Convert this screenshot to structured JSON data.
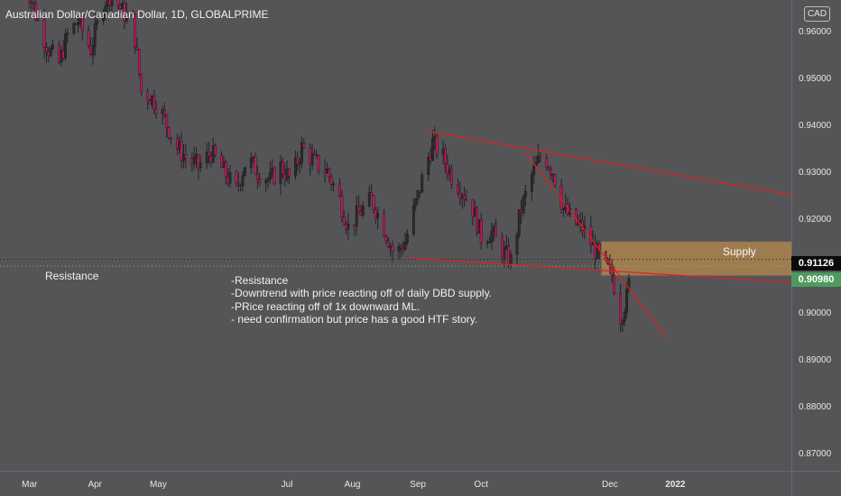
{
  "header": {
    "symbol_title": "Australian Dollar/Canadian Dollar, 1D, GLOBALPRIME"
  },
  "currency_badge": "CAD",
  "annotations": {
    "resistance_label": "Resistance",
    "supply_label": "Supply",
    "note_text": "-Resistance\n-Downtrend with price reacting off of daily DBD supply.\n-PRice reacting off of 1x downward ML.\n- need confirmation but price has a good HTF story."
  },
  "price_tags": {
    "last_price": "0.91126",
    "resistance_price": "0.90980"
  },
  "colors": {
    "background": "#555558",
    "candle_body": "#1a1a1a",
    "candle_wick": "#222222",
    "bull_candle": "#2b2b2b",
    "bear_candle": "#c2185b",
    "trendline": "#e02020",
    "supply_zone": "#b88a4e",
    "resistance_line": "#6fbf73",
    "last_price_line": "#222222"
  },
  "chart_data": {
    "type": "candlestick",
    "title": "Australian Dollar/Canadian Dollar, 1D, GLOBALPRIME",
    "x_tick_labels": [
      "Mar",
      "Apr",
      "May",
      "Jul",
      "Aug",
      "Sep",
      "Oct",
      "Dec",
      "2022"
    ],
    "y_tick_labels": [
      "0.96000",
      "0.95000",
      "0.94000",
      "0.93000",
      "0.92000",
      "0.91000",
      "0.90000",
      "0.89000",
      "0.88000",
      "0.87000"
    ],
    "y_axis_side": "right",
    "ylim": [
      0.8662,
      0.9665
    ],
    "xlim": [
      "2021-02-15",
      "2022-02-25"
    ],
    "close_series": {
      "dates": [
        "2021-02-25",
        "2021-03-01",
        "2021-03-05",
        "2021-03-10",
        "2021-03-15",
        "2021-03-19",
        "2021-03-24",
        "2021-03-30",
        "2021-04-05",
        "2021-04-09",
        "2021-04-14",
        "2021-04-19",
        "2021-04-23",
        "2021-04-27",
        "2021-05-01",
        "2021-05-05",
        "2021-05-10",
        "2021-05-14",
        "2021-05-20",
        "2021-05-26",
        "2021-06-01",
        "2021-06-07",
        "2021-06-12",
        "2021-06-17",
        "2021-06-23",
        "2021-06-28",
        "2021-07-03",
        "2021-07-08",
        "2021-07-14",
        "2021-07-20",
        "2021-07-26",
        "2021-07-30",
        "2021-08-04",
        "2021-08-10",
        "2021-08-16",
        "2021-08-21",
        "2021-08-26",
        "2021-08-31",
        "2021-09-04",
        "2021-09-08",
        "2021-09-13",
        "2021-09-17",
        "2021-09-22",
        "2021-09-27",
        "2021-10-01",
        "2021-10-06",
        "2021-10-11",
        "2021-10-15",
        "2021-10-20",
        "2021-10-25",
        "2021-10-30",
        "2021-11-04",
        "2021-11-09",
        "2021-11-14",
        "2021-11-18",
        "2021-11-23",
        "2021-11-28",
        "2021-12-02",
        "2021-12-06",
        "2021-12-09",
        "2021-12-12"
      ],
      "close": [
        0.97,
        0.968,
        0.962,
        0.956,
        0.953,
        0.959,
        0.962,
        0.956,
        0.966,
        0.968,
        0.964,
        0.962,
        0.947,
        0.946,
        0.944,
        0.94,
        0.935,
        0.933,
        0.931,
        0.934,
        0.93,
        0.926,
        0.933,
        0.93,
        0.928,
        0.931,
        0.928,
        0.935,
        0.932,
        0.93,
        0.924,
        0.918,
        0.921,
        0.924,
        0.918,
        0.912,
        0.915,
        0.923,
        0.93,
        0.936,
        0.933,
        0.929,
        0.926,
        0.922,
        0.916,
        0.917,
        0.913,
        0.911,
        0.922,
        0.929,
        0.934,
        0.93,
        0.922,
        0.919,
        0.918,
        0.914,
        0.91,
        0.908,
        0.899,
        0.903,
        0.912
      ]
    },
    "trendlines": [
      {
        "name": "",
        "from": {
          "date": "2021-09-06",
          "price": 0.9385
        },
        "to": {
          "date": "2022-02-25",
          "price": 0.925
        }
      },
      {
        "name": "",
        "from": {
          "date": "2021-10-22",
          "price": 0.934
        },
        "to": {
          "date": "2021-12-28",
          "price": 0.8945
        }
      },
      {
        "name": "",
        "from": {
          "date": "2021-08-28",
          "price": 0.9115
        },
        "to": {
          "date": "2022-02-25",
          "price": 0.9063
        }
      }
    ],
    "supply_zone": {
      "label": "Supply",
      "from_date": "2021-11-27",
      "y_top": 0.915,
      "y_bottom": 0.9078
    },
    "horizontal_lines": [
      {
        "label": "Resistance",
        "price": 0.9098,
        "style": "dotted"
      },
      {
        "label": "",
        "price": 0.91126,
        "style": "dotted"
      }
    ]
  }
}
